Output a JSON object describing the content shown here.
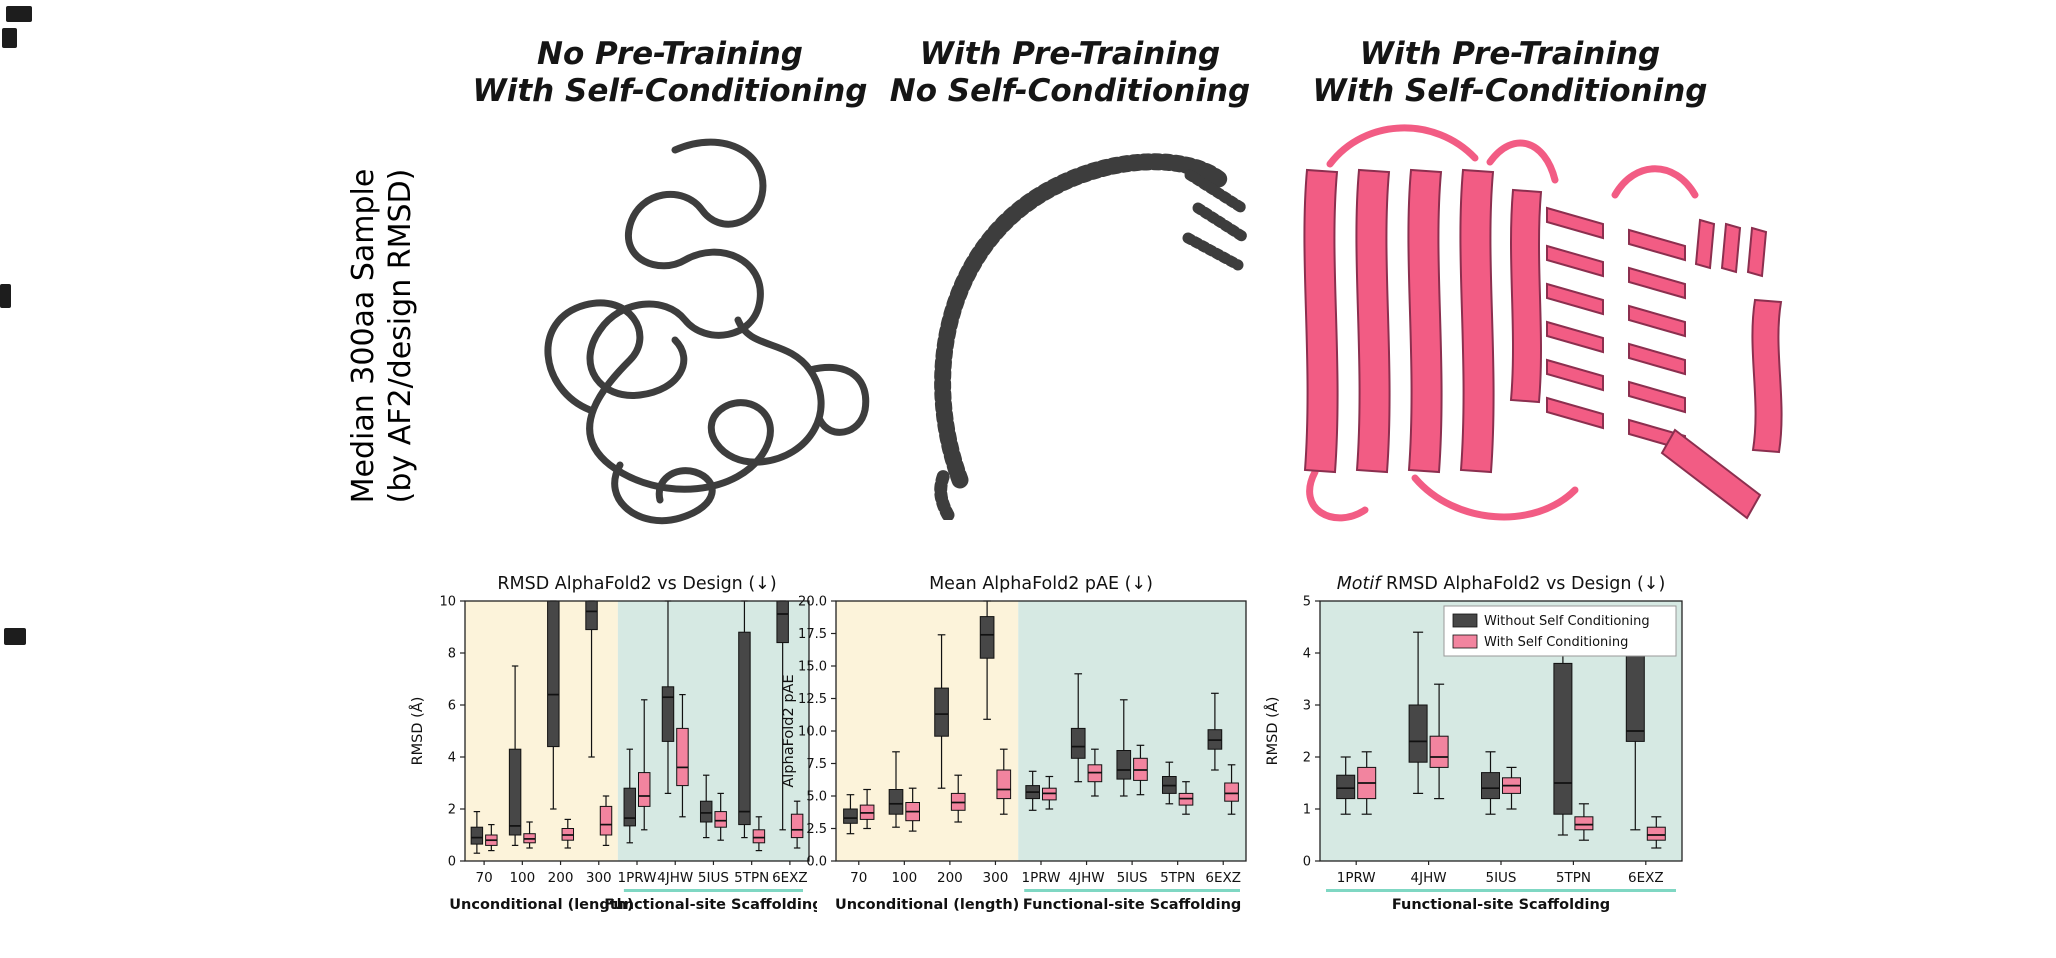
{
  "figure": {
    "row_label_line1": "Median 300aa Sample",
    "row_label_line2": "(by AF2/design RMSD)",
    "panel_titles": [
      {
        "line1": "No Pre-Training",
        "line2": "With Self-Conditioning"
      },
      {
        "line1": "With Pre-Training",
        "line2": "No Self-Conditioning"
      },
      {
        "line1": "With Pre-Training",
        "line2": "With Self-Conditioning"
      }
    ]
  },
  "colors": {
    "dark_series": "#474747",
    "pink_series": "#f2849f",
    "bg_unconditional": "#fcf3da",
    "bg_scaffolding": "#d6e9e3",
    "underline_teal": "#7fd7c3",
    "coil_gray": "#3d3d3d",
    "protein_pink": "#f25c84",
    "protein_pink_outline": "#8c2f4f"
  },
  "legend": {
    "without": "Without Self Conditioning",
    "with": "With Self Conditioning"
  },
  "chart_data": [
    {
      "type": "box",
      "title_italic": "",
      "title": "RMSD AlphaFold2 vs Design (↓)",
      "ylabel": "RMSD (Å)",
      "ylim": [
        0,
        10
      ],
      "yticks": [
        0,
        2,
        4,
        6,
        8,
        10
      ],
      "ytick_decimals": 0,
      "categories": [
        "70",
        "100",
        "200",
        "300",
        "1PRW",
        "4JHW",
        "5IUS",
        "5TPN",
        "6EXZ"
      ],
      "groups": [
        {
          "label": "Unconditional (length)",
          "start": 0,
          "end": 3,
          "bg": "#fcf3da",
          "underline": false
        },
        {
          "label": "Functional-site Scaffolding",
          "start": 4,
          "end": 8,
          "bg": "#d6e9e3",
          "underline": true
        }
      ],
      "legend": false,
      "series": [
        {
          "name": "Without Self Conditioning",
          "color": "#474747",
          "boxes": [
            [
              0.3,
              0.65,
              0.9,
              1.3,
              1.9
            ],
            [
              0.6,
              1.0,
              1.35,
              4.3,
              7.5
            ],
            [
              2.0,
              4.4,
              6.4,
              10,
              10
            ],
            [
              4.0,
              8.9,
              9.6,
              10,
              10
            ],
            [
              0.7,
              1.35,
              1.65,
              2.8,
              4.3
            ],
            [
              2.6,
              4.6,
              6.3,
              6.7,
              10
            ],
            [
              0.9,
              1.5,
              1.85,
              2.3,
              3.3
            ],
            [
              0.9,
              1.4,
              1.9,
              8.8,
              10
            ],
            [
              1.2,
              8.4,
              9.5,
              10,
              10
            ]
          ]
        },
        {
          "name": "With Self Conditioning",
          "color": "#f2849f",
          "boxes": [
            [
              0.4,
              0.6,
              0.8,
              1.0,
              1.4
            ],
            [
              0.5,
              0.7,
              0.85,
              1.05,
              1.5
            ],
            [
              0.5,
              0.8,
              1.0,
              1.25,
              1.6
            ],
            [
              0.6,
              1.0,
              1.4,
              2.1,
              2.5
            ],
            [
              1.2,
              2.1,
              2.5,
              3.4,
              6.2
            ],
            [
              1.7,
              2.9,
              3.6,
              5.1,
              6.4
            ],
            [
              0.8,
              1.3,
              1.55,
              1.9,
              2.6
            ],
            [
              0.4,
              0.7,
              0.9,
              1.2,
              1.7
            ],
            [
              0.5,
              0.9,
              1.2,
              1.8,
              2.3
            ]
          ]
        }
      ]
    },
    {
      "type": "box",
      "title_italic": "",
      "title": "Mean AlphaFold2 pAE (↓)",
      "ylabel": "AlphaFold2 pAE",
      "ylim": [
        0,
        20
      ],
      "yticks": [
        0,
        2.5,
        5,
        7.5,
        10,
        12.5,
        15,
        17.5,
        20
      ],
      "ytick_decimals": 1,
      "categories": [
        "70",
        "100",
        "200",
        "300",
        "1PRW",
        "4JHW",
        "5IUS",
        "5TPN",
        "6EXZ"
      ],
      "groups": [
        {
          "label": "Unconditional (length)",
          "start": 0,
          "end": 3,
          "bg": "#fcf3da",
          "underline": false
        },
        {
          "label": "Functional-site Scaffolding",
          "start": 4,
          "end": 8,
          "bg": "#d6e9e3",
          "underline": true
        }
      ],
      "legend": false,
      "series": [
        {
          "name": "Without Self Conditioning",
          "color": "#474747",
          "boxes": [
            [
              2.1,
              2.9,
              3.3,
              4.0,
              5.1
            ],
            [
              2.6,
              3.6,
              4.4,
              5.5,
              8.4
            ],
            [
              5.6,
              9.6,
              11.3,
              13.3,
              17.4
            ],
            [
              10.9,
              15.6,
              17.4,
              18.8,
              20
            ],
            [
              3.9,
              4.8,
              5.3,
              5.8,
              6.9
            ],
            [
              6.1,
              7.9,
              8.8,
              10.2,
              14.4
            ],
            [
              5.0,
              6.3,
              7.0,
              8.5,
              12.4
            ],
            [
              4.4,
              5.2,
              5.8,
              6.5,
              7.6
            ],
            [
              7.0,
              8.6,
              9.3,
              10.1,
              12.9
            ]
          ]
        },
        {
          "name": "With Self Conditioning",
          "color": "#f2849f",
          "boxes": [
            [
              2.5,
              3.2,
              3.7,
              4.3,
              5.5
            ],
            [
              2.3,
              3.1,
              3.8,
              4.5,
              5.6
            ],
            [
              3.0,
              3.9,
              4.5,
              5.2,
              6.6
            ],
            [
              3.6,
              4.8,
              5.5,
              7.0,
              8.6
            ],
            [
              4.0,
              4.7,
              5.2,
              5.6,
              6.5
            ],
            [
              5.0,
              6.1,
              6.8,
              7.4,
              8.6
            ],
            [
              5.1,
              6.2,
              7.0,
              7.9,
              8.9
            ],
            [
              3.6,
              4.3,
              4.8,
              5.2,
              6.1
            ],
            [
              3.6,
              4.6,
              5.2,
              6.0,
              7.4
            ]
          ]
        }
      ]
    },
    {
      "type": "box",
      "title_italic": "Motif",
      "title": " RMSD AlphaFold2 vs Design (↓)",
      "ylabel": "RMSD (Å)",
      "ylim": [
        0,
        5
      ],
      "yticks": [
        0,
        1,
        2,
        3,
        4,
        5
      ],
      "ytick_decimals": 0,
      "categories": [
        "1PRW",
        "4JHW",
        "5IUS",
        "5TPN",
        "6EXZ"
      ],
      "groups": [
        {
          "label": "Functional-site Scaffolding",
          "start": 0,
          "end": 4,
          "bg": "#d6e9e3",
          "underline": true
        }
      ],
      "legend": true,
      "series": [
        {
          "name": "Without Self Conditioning",
          "color": "#474747",
          "boxes": [
            [
              0.9,
              1.2,
              1.4,
              1.65,
              2.0
            ],
            [
              1.3,
              1.9,
              2.3,
              3.0,
              4.4
            ],
            [
              0.9,
              1.2,
              1.4,
              1.7,
              2.1
            ],
            [
              0.5,
              0.9,
              1.5,
              3.8,
              4.9
            ],
            [
              0.6,
              2.3,
              2.5,
              4.0,
              4.5
            ]
          ]
        },
        {
          "name": "With Self Conditioning",
          "color": "#f2849f",
          "boxes": [
            [
              0.9,
              1.2,
              1.5,
              1.8,
              2.1
            ],
            [
              1.2,
              1.8,
              2.0,
              2.4,
              3.4
            ],
            [
              1.0,
              1.3,
              1.45,
              1.6,
              1.8
            ],
            [
              0.4,
              0.6,
              0.7,
              0.85,
              1.1
            ],
            [
              0.25,
              0.4,
              0.5,
              0.65,
              0.85
            ]
          ]
        }
      ]
    }
  ]
}
